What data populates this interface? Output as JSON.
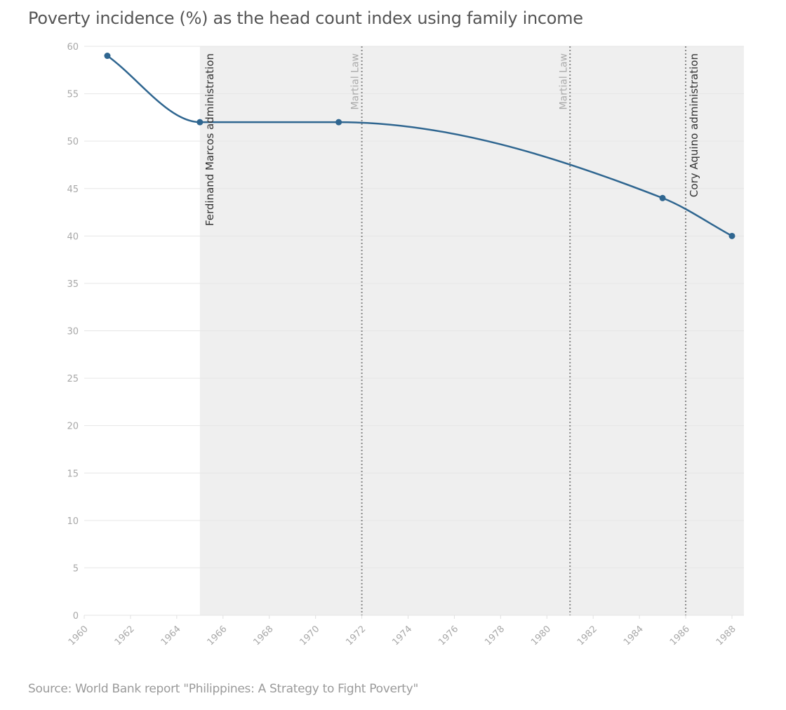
{
  "chart_data": {
    "type": "line",
    "title": "Poverty incidence (%) as the head count index using family income",
    "source": "Source: World Bank report \"Philippines: A Strategy to Fight Poverty\"",
    "xlabel": "",
    "ylabel": "",
    "xlim": [
      1960,
      1988
    ],
    "ylim": [
      0,
      60
    ],
    "x_ticks": [
      "1960",
      "1962",
      "1964",
      "1966",
      "1968",
      "1970",
      "1972",
      "1974",
      "1976",
      "1978",
      "1980",
      "1982",
      "1984",
      "1986",
      "1988"
    ],
    "y_ticks": [
      "0",
      "5",
      "10",
      "15",
      "20",
      "25",
      "30",
      "35",
      "40",
      "45",
      "50",
      "55",
      "60"
    ],
    "grid": true,
    "series": [
      {
        "name": "Poverty incidence",
        "color": "#2f6690",
        "x": [
          1961,
          1965,
          1971,
          1985,
          1988
        ],
        "values": [
          59,
          52,
          52,
          44,
          40
        ]
      }
    ],
    "bands": [
      {
        "label": "Ferdinand Marcos administration",
        "from": 1965,
        "to": 1988.5,
        "color": "#efefef"
      }
    ],
    "annotations": [
      {
        "label": "Martial Law",
        "x": 1972,
        "style": "dotted"
      },
      {
        "label": "Martial Law",
        "x": 1981,
        "style": "dotted"
      },
      {
        "label": "Cory Aquino administration",
        "x": 1986,
        "style": "dotted"
      }
    ]
  }
}
